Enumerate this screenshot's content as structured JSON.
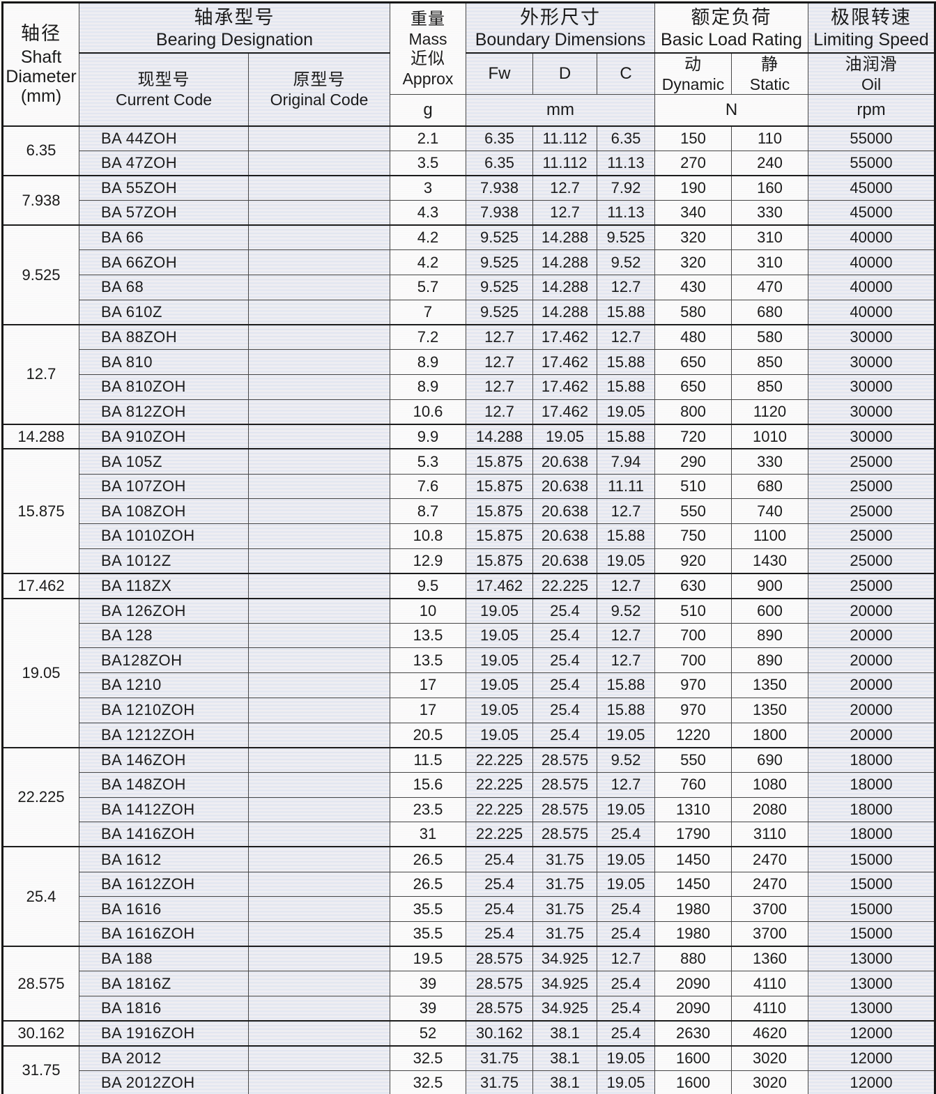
{
  "document_type": "bearing specification table",
  "colors": {
    "shade_stripe_blue": "#dde2ee",
    "shade_stripe_pink": "#f2eff1",
    "cell_white": "#fdfcfb",
    "border_dark": "#161616",
    "text": "#1b1b1b"
  },
  "header": {
    "shaft": {
      "zh": "轴径",
      "en1": "Shaft",
      "en2": "Diameter",
      "en3": "(mm)"
    },
    "designation": {
      "zh": "轴承型号",
      "en": "Bearing Designation"
    },
    "current": {
      "zh": "现型号",
      "en": "Current Code"
    },
    "original": {
      "zh": "原型号",
      "en": "Original Code"
    },
    "mass": {
      "zh1": "重量",
      "en1": "Mass",
      "zh2": "近似",
      "en2": "Approx",
      "unit": "g"
    },
    "boundary": {
      "zh": "外形尺寸",
      "en": "Boundary Dimensions",
      "fw": "Fw",
      "d": "D",
      "c": "C",
      "unit": "mm"
    },
    "load": {
      "zh": "额定负荷",
      "en": "Basic Load Rating",
      "dyn_zh": "动",
      "dyn_en": "Dynamic",
      "stat_zh": "静",
      "stat_en": "Static",
      "unit": "N"
    },
    "speed": {
      "zh": "极限转速",
      "en": "Limiting Speed",
      "oil_zh": "油润滑",
      "oil_en": "Oil",
      "unit": "rpm"
    }
  },
  "row_columns": [
    "current_code",
    "original_code",
    "mass_g",
    "fw_mm",
    "d_mm",
    "c_mm",
    "dynamic_n",
    "static_n",
    "speed_rpm"
  ],
  "groups": [
    {
      "shaft_diameter": "6.35",
      "rows": [
        [
          "BA 44ZOH",
          "",
          "2.1",
          "6.35",
          "11.112",
          "6.35",
          "150",
          "110",
          "55000"
        ],
        [
          "BA 47ZOH",
          "",
          "3.5",
          "6.35",
          "11.112",
          "11.13",
          "270",
          "240",
          "55000"
        ]
      ]
    },
    {
      "shaft_diameter": "7.938",
      "rows": [
        [
          "BA 55ZOH",
          "",
          "3",
          "7.938",
          "12.7",
          "7.92",
          "190",
          "160",
          "45000"
        ],
        [
          "BA 57ZOH",
          "",
          "4.3",
          "7.938",
          "12.7",
          "11.13",
          "340",
          "330",
          "45000"
        ]
      ]
    },
    {
      "shaft_diameter": "9.525",
      "rows": [
        [
          "BA 66",
          "",
          "4.2",
          "9.525",
          "14.288",
          "9.525",
          "320",
          "310",
          "40000"
        ],
        [
          "BA 66ZOH",
          "",
          "4.2",
          "9.525",
          "14.288",
          "9.52",
          "320",
          "310",
          "40000"
        ],
        [
          "BA 68",
          "",
          "5.7",
          "9.525",
          "14.288",
          "12.7",
          "430",
          "470",
          "40000"
        ],
        [
          "BA 610Z",
          "",
          "7",
          "9.525",
          "14.288",
          "15.88",
          "580",
          "680",
          "40000"
        ]
      ]
    },
    {
      "shaft_diameter": "12.7",
      "rows": [
        [
          "BA 88ZOH",
          "",
          "7.2",
          "12.7",
          "17.462",
          "12.7",
          "480",
          "580",
          "30000"
        ],
        [
          "BA 810",
          "",
          "8.9",
          "12.7",
          "17.462",
          "15.88",
          "650",
          "850",
          "30000"
        ],
        [
          "BA 810ZOH",
          "",
          "8.9",
          "12.7",
          "17.462",
          "15.88",
          "650",
          "850",
          "30000"
        ],
        [
          "BA 812ZOH",
          "",
          "10.6",
          "12.7",
          "17.462",
          "19.05",
          "800",
          "1120",
          "30000"
        ]
      ]
    },
    {
      "shaft_diameter": "14.288",
      "rows": [
        [
          "BA 910ZOH",
          "",
          "9.9",
          "14.288",
          "19.05",
          "15.88",
          "720",
          "1010",
          "30000"
        ]
      ]
    },
    {
      "shaft_diameter": "15.875",
      "rows": [
        [
          "BA 105Z",
          "",
          "5.3",
          "15.875",
          "20.638",
          "7.94",
          "290",
          "330",
          "25000"
        ],
        [
          "BA 107ZOH",
          "",
          "7.6",
          "15.875",
          "20.638",
          "11.11",
          "510",
          "680",
          "25000"
        ],
        [
          "BA 108ZOH",
          "",
          "8.7",
          "15.875",
          "20.638",
          "12.7",
          "550",
          "740",
          "25000"
        ],
        [
          "BA 1010ZOH",
          "",
          "10.8",
          "15.875",
          "20.638",
          "15.88",
          "750",
          "1100",
          "25000"
        ],
        [
          "BA 1012Z",
          "",
          "12.9",
          "15.875",
          "20.638",
          "19.05",
          "920",
          "1430",
          "25000"
        ]
      ]
    },
    {
      "shaft_diameter": "17.462",
      "rows": [
        [
          "BA 118ZX",
          "",
          "9.5",
          "17.462",
          "22.225",
          "12.7",
          "630",
          "900",
          "25000"
        ]
      ]
    },
    {
      "shaft_diameter": "19.05",
      "rows": [
        [
          "BA 126ZOH",
          "",
          "10",
          "19.05",
          "25.4",
          "9.52",
          "510",
          "600",
          "20000"
        ],
        [
          "BA 128",
          "",
          "13.5",
          "19.05",
          "25.4",
          "12.7",
          "700",
          "890",
          "20000"
        ],
        [
          "BA128ZOH",
          "",
          "13.5",
          "19.05",
          "25.4",
          "12.7",
          "700",
          "890",
          "20000"
        ],
        [
          "BA 1210",
          "",
          "17",
          "19.05",
          "25.4",
          "15.88",
          "970",
          "1350",
          "20000"
        ],
        [
          "BA 1210ZOH",
          "",
          "17",
          "19.05",
          "25.4",
          "15.88",
          "970",
          "1350",
          "20000"
        ],
        [
          "BA 1212ZOH",
          "",
          "20.5",
          "19.05",
          "25.4",
          "19.05",
          "1220",
          "1800",
          "20000"
        ]
      ]
    },
    {
      "shaft_diameter": "22.225",
      "rows": [
        [
          "BA 146ZOH",
          "",
          "11.5",
          "22.225",
          "28.575",
          "9.52",
          "550",
          "690",
          "18000"
        ],
        [
          "BA 148ZOH",
          "",
          "15.6",
          "22.225",
          "28.575",
          "12.7",
          "760",
          "1080",
          "18000"
        ],
        [
          "BA 1412ZOH",
          "",
          "23.5",
          "22.225",
          "28.575",
          "19.05",
          "1310",
          "2080",
          "18000"
        ],
        [
          "BA 1416ZOH",
          "",
          "31",
          "22.225",
          "28.575",
          "25.4",
          "1790",
          "3110",
          "18000"
        ]
      ]
    },
    {
      "shaft_diameter": "25.4",
      "rows": [
        [
          "BA 1612",
          "",
          "26.5",
          "25.4",
          "31.75",
          "19.05",
          "1450",
          "2470",
          "15000"
        ],
        [
          "BA 1612ZOH",
          "",
          "26.5",
          "25.4",
          "31.75",
          "19.05",
          "1450",
          "2470",
          "15000"
        ],
        [
          "BA 1616",
          "",
          "35.5",
          "25.4",
          "31.75",
          "25.4",
          "1980",
          "3700",
          "15000"
        ],
        [
          "BA 1616ZOH",
          "",
          "35.5",
          "25.4",
          "31.75",
          "25.4",
          "1980",
          "3700",
          "15000"
        ]
      ]
    },
    {
      "shaft_diameter": "28.575",
      "rows": [
        [
          "BA 188",
          "",
          "19.5",
          "28.575",
          "34.925",
          "12.7",
          "880",
          "1360",
          "13000"
        ],
        [
          "BA 1816Z",
          "",
          "39",
          "28.575",
          "34.925",
          "25.4",
          "2090",
          "4110",
          "13000"
        ],
        [
          "BA 1816",
          "",
          "39",
          "28.575",
          "34.925",
          "25.4",
          "2090",
          "4110",
          "13000"
        ]
      ]
    },
    {
      "shaft_diameter": "30.162",
      "rows": [
        [
          "BA 1916ZOH",
          "",
          "52",
          "30.162",
          "38.1",
          "25.4",
          "2630",
          "4620",
          "12000"
        ]
      ]
    },
    {
      "shaft_diameter": "31.75",
      "rows": [
        [
          "BA 2012",
          "",
          "32.5",
          "31.75",
          "38.1",
          "19.05",
          "1600",
          "3020",
          "12000"
        ],
        [
          "BA 2012ZOH",
          "",
          "32.5",
          "31.75",
          "38.1",
          "19.05",
          "1600",
          "3020",
          "12000"
        ]
      ]
    }
  ]
}
